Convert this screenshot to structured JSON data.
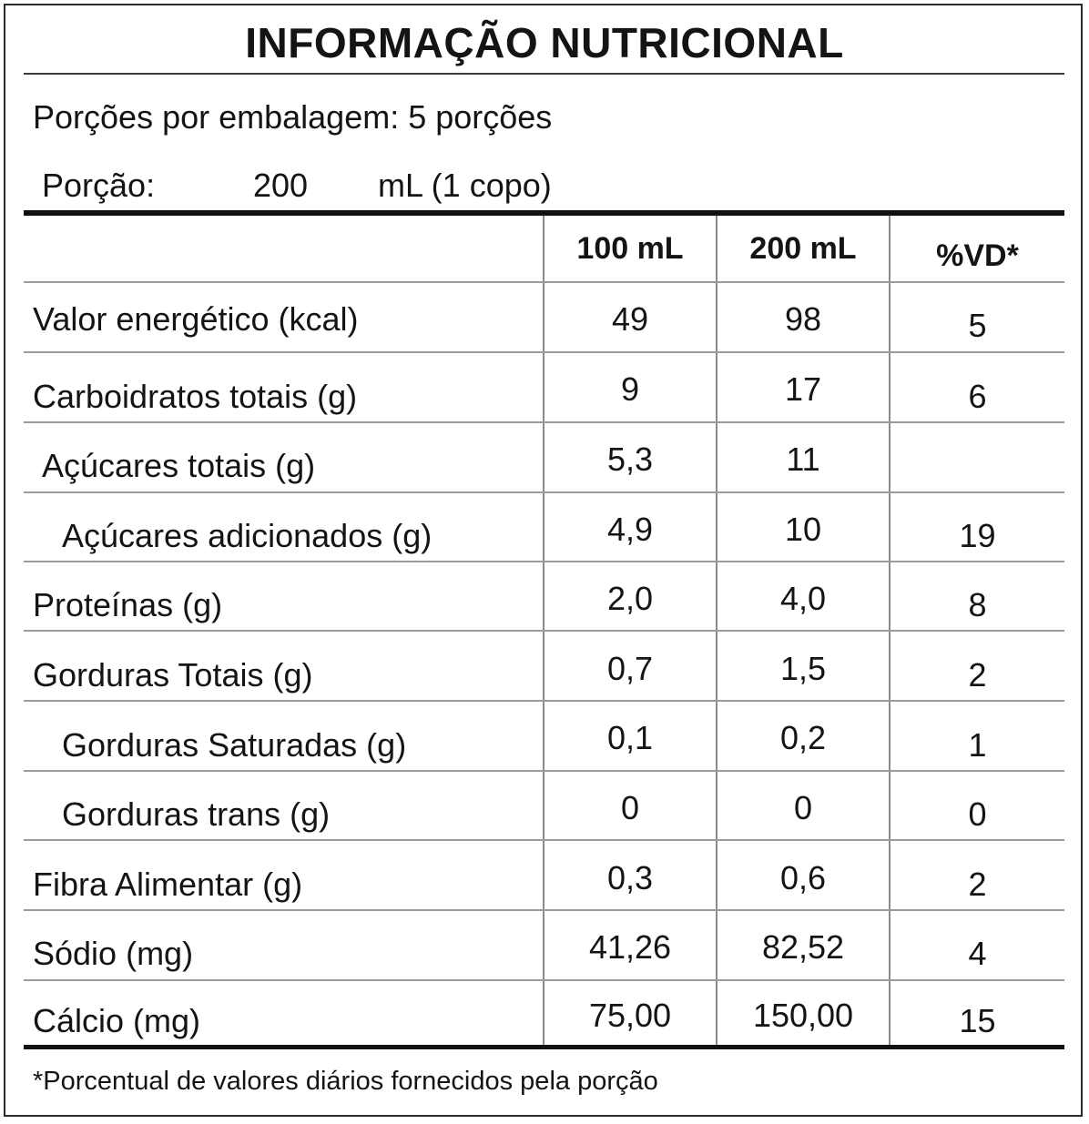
{
  "title": "INFORMAÇÃO NUTRICIONAL",
  "servings_per_package": "Porções por embalagem: 5 porções",
  "portion": {
    "label": "Porção:",
    "amount": "200",
    "unit": "mL (1 copo)"
  },
  "columns": [
    "100 mL",
    "200 mL",
    "%VD*"
  ],
  "rows": [
    {
      "label": "Valor energético (kcal)",
      "v100": "49",
      "v200": "98",
      "vd": "5"
    },
    {
      "label": "Carboidratos totais (g)",
      "v100": "9",
      "v200": "17",
      "vd": "6"
    },
    {
      "label": "Açúcares totais (g)",
      "v100": "5,3",
      "v200": "11",
      "vd": ""
    },
    {
      "label": "Açúcares adicionados (g)",
      "v100": "4,9",
      "v200": "10",
      "vd": "19"
    },
    {
      "label": "Proteínas (g)",
      "v100": "2,0",
      "v200": "4,0",
      "vd": "8"
    },
    {
      "label": "Gorduras Totais (g)",
      "v100": "0,7",
      "v200": "1,5",
      "vd": "2"
    },
    {
      "label": "Gorduras Saturadas (g)",
      "v100": "0,1",
      "v200": "0,2",
      "vd": "1"
    },
    {
      "label": "Gorduras trans (g)",
      "v100": "0",
      "v200": "0",
      "vd": "0"
    },
    {
      "label": "Fibra Alimentar (g)",
      "v100": "0,3",
      "v200": "0,6",
      "vd": "2"
    },
    {
      "label": "Sódio (mg)",
      "v100": "41,26",
      "v200": "82,52",
      "vd": "4"
    },
    {
      "label": "Cálcio (mg)",
      "v100": "75,00",
      "v200": "150,00",
      "vd": "15"
    }
  ],
  "footnote": "*Porcentual de valores diários fornecidos pela porção"
}
